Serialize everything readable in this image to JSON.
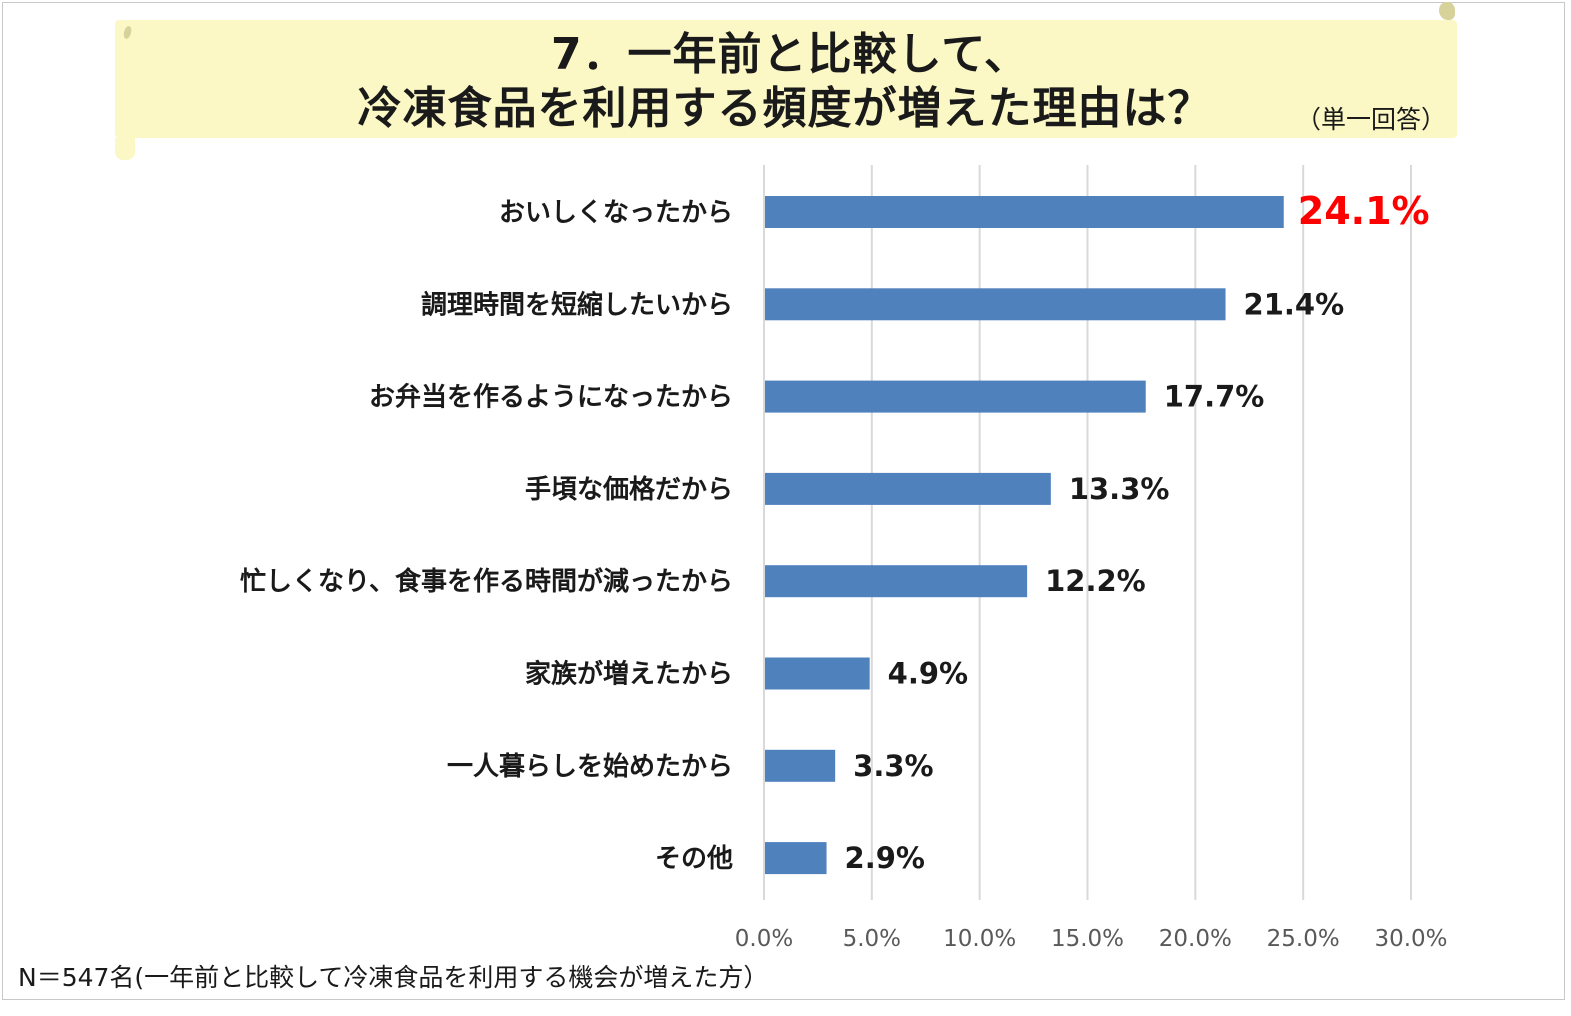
{
  "title": {
    "line1": "7．一年前と比較して、",
    "line2": "冷凍食品を利用する頻度が増えた理由は？",
    "subtitle": "（単一回答）"
  },
  "footnote": "N＝547名(一年前と比較して冷凍食品を利用する機会が増えた方）",
  "colors": {
    "bar": "#4f81bd",
    "highlight_label": "#ff0000",
    "label": "#1a1a1a",
    "grid": "#d9d9d9",
    "tick": "#595959",
    "banner": "#fbf8c6"
  },
  "chart_data": {
    "type": "bar",
    "orientation": "horizontal",
    "categories": [
      "おいしくなったから",
      "調理時間を短縮したいから",
      "お弁当を作るようになったから",
      "手頃な価格だから",
      "忙しくなり、食事を作る時間が減ったから",
      "家族が増えたから",
      "一人暮らしを始めたから",
      "その他"
    ],
    "values": [
      24.1,
      21.4,
      17.7,
      13.3,
      12.2,
      4.9,
      3.3,
      2.9
    ],
    "value_labels": [
      "24.1%",
      "21.4%",
      "17.7%",
      "13.3%",
      "12.2%",
      "4.9%",
      "3.3%",
      "2.9%"
    ],
    "highlight_index": 0,
    "xlim": [
      0,
      30
    ],
    "x_ticks": [
      0,
      5,
      10,
      15,
      20,
      25,
      30
    ],
    "x_tick_labels": [
      "0.0%",
      "5.0%",
      "10.0%",
      "15.0%",
      "20.0%",
      "25.0%",
      "30.0%"
    ],
    "grid": true,
    "legend": "none"
  }
}
